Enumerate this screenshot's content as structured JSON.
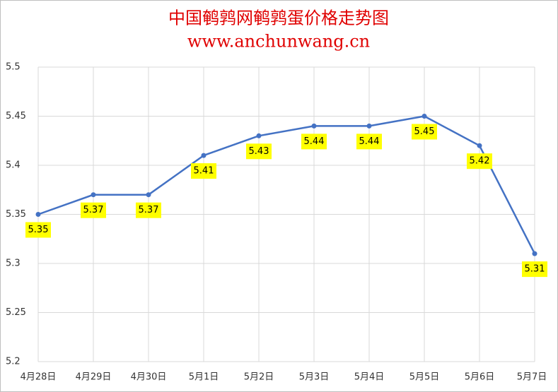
{
  "chart_data": {
    "type": "line",
    "title": "中国鹌鹑网鹌鹑蛋价格走势图",
    "subtitle": "www.anchunwang.cn",
    "categories": [
      "4月28日",
      "4月29日",
      "4月30日",
      "5月1日",
      "5月2日",
      "5月3日",
      "5月4日",
      "5月5日",
      "5月6日",
      "5月7日"
    ],
    "values": [
      5.35,
      5.37,
      5.37,
      5.41,
      5.43,
      5.44,
      5.44,
      5.45,
      5.42,
      5.31
    ],
    "color": "#4472c4",
    "label_color": "#ffff00",
    "ylim": [
      5.2,
      5.5
    ],
    "yticks": [
      5.2,
      5.25,
      5.3,
      5.35,
      5.4,
      5.45,
      5.5
    ],
    "grid": true
  }
}
